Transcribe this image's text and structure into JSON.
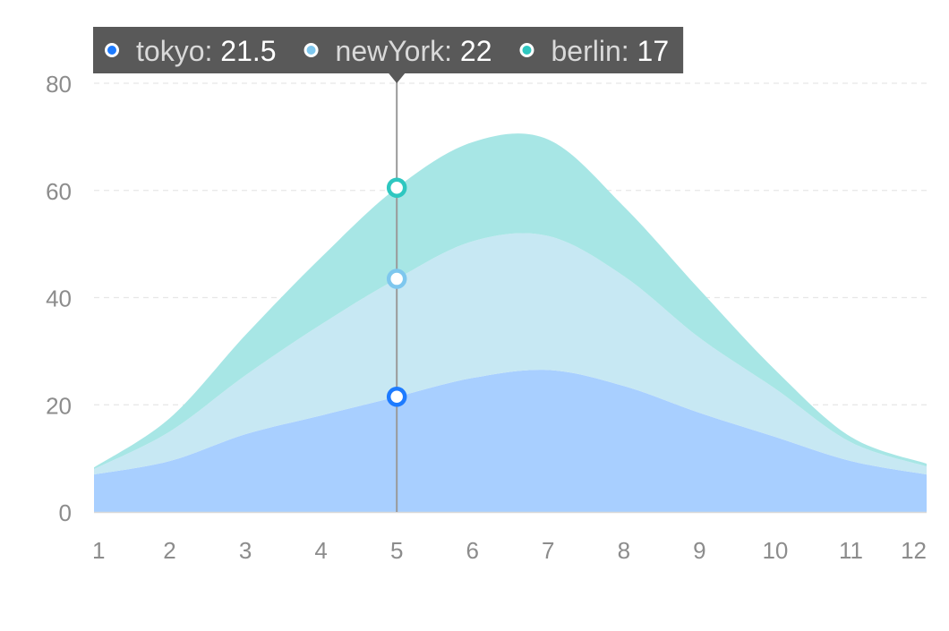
{
  "chart_data": {
    "type": "area",
    "stacked": true,
    "smooth": true,
    "x": [
      1,
      2,
      3,
      4,
      5,
      6,
      7,
      8,
      9,
      10,
      11,
      12
    ],
    "series": [
      {
        "name": "tokyo",
        "color": "#1d7bff",
        "fill": "#a8cfff",
        "values": [
          7,
          9.5,
          14.5,
          18,
          21.5,
          25,
          26.5,
          23.5,
          18.5,
          14,
          9.5,
          7
        ]
      },
      {
        "name": "newYork",
        "color": "#7ec7ee",
        "fill": "#c7e8f3",
        "values": [
          1,
          5.5,
          11,
          17,
          22,
          25.5,
          25,
          20.5,
          14,
          9,
          3.5,
          1.5
        ]
      },
      {
        "name": "berlin",
        "color": "#2ec7c0",
        "fill": "#a7e6e5",
        "values": [
          0.3,
          2.5,
          7.5,
          12.5,
          17,
          18.5,
          18,
          13,
          9,
          3.5,
          1,
          0.5
        ]
      }
    ],
    "ylim": [
      0,
      80
    ],
    "yticks": [
      0,
      20,
      40,
      60,
      80
    ],
    "grid": true,
    "title": "",
    "xlabel": "",
    "ylabel": "",
    "tooltip": {
      "x_index": 4,
      "entries": [
        {
          "name": "tokyo",
          "label": "tokyo: ",
          "value": "21.5"
        },
        {
          "name": "newYork",
          "label": "newYork: ",
          "value": "22"
        },
        {
          "name": "berlin",
          "label": "berlin: ",
          "value": "17"
        }
      ],
      "background": "#595959",
      "label_color": "#d9d9d9",
      "value_color": "#ffffff"
    }
  }
}
